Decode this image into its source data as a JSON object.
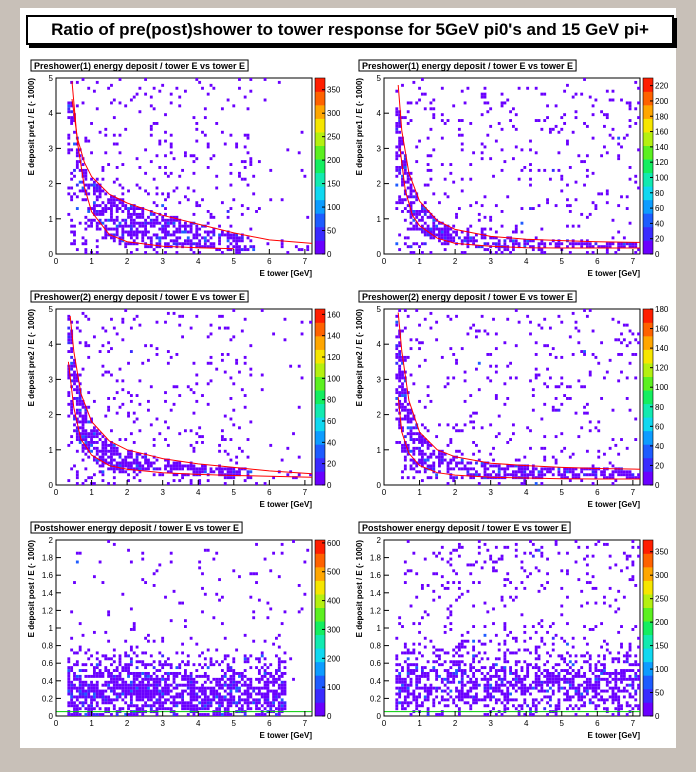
{
  "main_title": "Ratio of pre(post)shower to tower response for 5GeV pi0's and 15 GeV pi+",
  "chart_data": [
    {
      "type": "heatmap",
      "title": "Preshower(1) energy deposit / tower E vs tower E",
      "xlabel": "E tower [GeV]",
      "ylabel": "E deposit pre1 / E (· 1000)",
      "xlim": [
        0,
        7.2
      ],
      "ylim": [
        0,
        5
      ],
      "xticks": [
        0,
        1,
        2,
        3,
        4,
        5,
        6,
        7
      ],
      "yticks": [
        0,
        1,
        2,
        3,
        4,
        5
      ],
      "zlim": [
        0,
        375
      ],
      "zticks": [
        0,
        50,
        100,
        150,
        200,
        250,
        300,
        350
      ],
      "curve_color": "#ff0000",
      "curves": [
        {
          "x": [
            0.45,
            0.6,
            0.8,
            1,
            1.5,
            2,
            3,
            4,
            5,
            6,
            7.2
          ],
          "y": [
            4.4,
            3.3,
            2.6,
            2.2,
            1.7,
            1.45,
            1.1,
            0.85,
            0.6,
            0.4,
            0.3
          ]
        },
        {
          "x": [
            0.45,
            0.6,
            0.8,
            1,
            1.5,
            2,
            3,
            4,
            5
          ],
          "y": [
            4.9,
            3.2,
            1.9,
            1.2,
            0.55,
            0.35,
            0.22,
            0.18,
            0.15
          ]
        }
      ]
    },
    {
      "type": "heatmap",
      "title": "Preshower(1) energy deposit / tower E vs tower E",
      "xlabel": "E tower [GeV]",
      "ylabel": "E deposit pre1 / E (· 1000)",
      "xlim": [
        0,
        7.2
      ],
      "ylim": [
        0,
        5
      ],
      "xticks": [
        0,
        1,
        2,
        3,
        4,
        5,
        6,
        7
      ],
      "yticks": [
        0,
        1,
        2,
        3,
        4,
        5
      ],
      "zlim": [
        0,
        230
      ],
      "zticks": [
        0,
        20,
        40,
        60,
        80,
        100,
        120,
        140,
        160,
        180,
        200,
        220
      ],
      "curve_color": "#ff0000",
      "curves": [
        {
          "x": [
            0.4,
            0.5,
            0.7,
            1,
            1.5,
            2,
            3,
            4,
            5,
            6,
            7.2
          ],
          "y": [
            4.8,
            3.5,
            2.3,
            1.5,
            0.95,
            0.7,
            0.5,
            0.42,
            0.38,
            0.35,
            0.33
          ]
        },
        {
          "x": [
            0.45,
            0.6,
            0.8,
            1,
            1.5,
            2,
            3,
            4,
            5,
            6,
            7.2
          ],
          "y": [
            3.0,
            1.8,
            1.1,
            0.8,
            0.45,
            0.3,
            0.22,
            0.18,
            0.17,
            0.17,
            0.17
          ]
        }
      ]
    },
    {
      "type": "heatmap",
      "title": "Preshower(2) energy deposit / tower E vs tower E",
      "xlabel": "E tower [GeV]",
      "ylabel": "E deposit pre2 / E (· 1000)",
      "xlim": [
        0,
        7.2
      ],
      "ylim": [
        0,
        5
      ],
      "xticks": [
        0,
        1,
        2,
        3,
        4,
        5,
        6,
        7
      ],
      "yticks": [
        0,
        1,
        2,
        3,
        4,
        5
      ],
      "zlim": [
        0,
        165
      ],
      "zticks": [
        0,
        20,
        40,
        60,
        80,
        100,
        120,
        140,
        160
      ],
      "curve_color": "#ff0000",
      "curves": [
        {
          "x": [
            0.4,
            0.5,
            0.7,
            1,
            1.5,
            2,
            3,
            4,
            5,
            6,
            7.2
          ],
          "y": [
            4.8,
            3.8,
            2.6,
            1.8,
            1.25,
            1.0,
            0.75,
            0.6,
            0.5,
            0.4,
            0.32
          ]
        },
        {
          "x": [
            0.35,
            0.5,
            0.7,
            1,
            1.5,
            2,
            3,
            4,
            5,
            6,
            7.2
          ],
          "y": [
            3.5,
            2.2,
            1.3,
            0.85,
            0.55,
            0.45,
            0.35,
            0.3,
            0.27,
            0.25,
            0.22
          ]
        }
      ]
    },
    {
      "type": "heatmap",
      "title": "Preshower(2) energy deposit / tower E vs tower E",
      "xlabel": "E tower [GeV]",
      "ylabel": "E deposit pre2 / E (· 1000)",
      "xlim": [
        0,
        7.2
      ],
      "ylim": [
        0,
        5
      ],
      "xticks": [
        0,
        1,
        2,
        3,
        4,
        5,
        6,
        7
      ],
      "yticks": [
        0,
        1,
        2,
        3,
        4,
        5
      ],
      "zlim": [
        0,
        180
      ],
      "zticks": [
        0,
        20,
        40,
        60,
        80,
        100,
        120,
        140,
        160,
        180
      ],
      "curve_color": "#ff0000",
      "curves": [
        {
          "x": [
            0.4,
            0.5,
            0.7,
            1,
            1.5,
            2,
            3,
            4,
            5,
            6,
            7.2
          ],
          "y": [
            4.9,
            3.8,
            2.4,
            1.5,
            1.0,
            0.8,
            0.62,
            0.55,
            0.5,
            0.47,
            0.45
          ]
        },
        {
          "x": [
            0.4,
            0.5,
            0.7,
            1,
            1.5,
            2,
            3,
            4,
            5,
            6,
            7.2
          ],
          "y": [
            2.5,
            1.5,
            0.9,
            0.55,
            0.35,
            0.28,
            0.22,
            0.2,
            0.18,
            0.17,
            0.17
          ]
        }
      ]
    },
    {
      "type": "heatmap",
      "title": "Postshower   energy deposit / tower E vs tower E",
      "xlabel": "E tower [GeV]",
      "ylabel": "E deposit post / E (· 1000)",
      "xlim": [
        0,
        7.2
      ],
      "ylim": [
        0,
        2
      ],
      "xticks": [
        0,
        1,
        2,
        3,
        4,
        5,
        6,
        7
      ],
      "yticks": [
        0,
        0.2,
        0.4,
        0.6,
        0.8,
        1,
        1.2,
        1.4,
        1.6,
        1.8,
        2
      ],
      "zlim": [
        0,
        610
      ],
      "zticks": [
        0,
        100,
        200,
        300,
        400,
        500,
        600
      ],
      "curve_color": "#00cc00",
      "curves": [
        {
          "x": [
            0,
            7.2
          ],
          "y": [
            0.05,
            0.05
          ]
        }
      ]
    },
    {
      "type": "heatmap",
      "title": "Postshower   energy deposit / tower E vs tower E",
      "xlabel": "E tower [GeV]",
      "ylabel": "E deposit post / E (· 1000)",
      "xlim": [
        0,
        7.2
      ],
      "ylim": [
        0,
        2
      ],
      "xticks": [
        0,
        1,
        2,
        3,
        4,
        5,
        6,
        7
      ],
      "yticks": [
        0,
        0.2,
        0.4,
        0.6,
        0.8,
        1,
        1.2,
        1.4,
        1.6,
        1.8,
        2
      ],
      "zlim": [
        0,
        375
      ],
      "zticks": [
        0,
        50,
        100,
        150,
        200,
        250,
        300,
        350
      ],
      "curve_color": "#00cc00",
      "curves": [
        {
          "x": [
            0,
            7.2
          ],
          "y": [
            0.05,
            0.05
          ]
        }
      ]
    }
  ]
}
